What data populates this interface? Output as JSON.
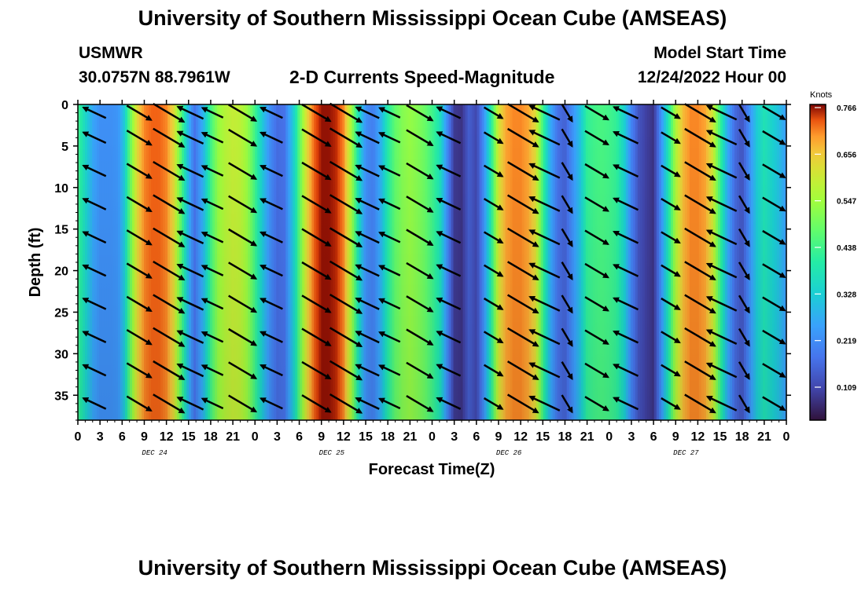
{
  "page": {
    "title_top": "University of Southern Mississippi Ocean Cube (AMSEAS)",
    "title_bottom": "University of Southern Mississippi Ocean Cube (AMSEAS)",
    "station_id": "USMWR",
    "station_coords": "30.0757N  88.7961W",
    "plot_title": "2-D Currents Speed-Magnitude",
    "model_start_label": "Model Start Time",
    "model_start_value": "12/24/2022 Hour 00"
  },
  "chart_data": {
    "type": "heatmap",
    "title": "2-D Currents Speed-Magnitude",
    "xlabel": "Forecast Time(Z)",
    "ylabel": "Depth (ft)",
    "x_range_hours": [
      0,
      96
    ],
    "y_range_ft": [
      0,
      38
    ],
    "x_tick_labels": [
      "0",
      "3",
      "6",
      "9",
      "12",
      "15",
      "18",
      "21",
      "0",
      "3",
      "6",
      "9",
      "12",
      "15",
      "18",
      "21",
      "0",
      "3",
      "6",
      "9",
      "12",
      "15",
      "18",
      "21",
      "0",
      "3",
      "6",
      "9",
      "12",
      "15",
      "18",
      "21",
      "0"
    ],
    "y_ticks": [
      0,
      5,
      10,
      15,
      20,
      25,
      30,
      35
    ],
    "date_labels": [
      {
        "label": "DEC 24",
        "hour": 12
      },
      {
        "label": "DEC 25",
        "hour": 36
      },
      {
        "label": "DEC 26",
        "hour": 60
      },
      {
        "label": "DEC 27",
        "hour": 84
      }
    ],
    "colorbar": {
      "units": "Knots",
      "ticks": [
        "0.766",
        "0.656",
        "0.547",
        "0.438",
        "0.328",
        "0.219",
        "0.109"
      ],
      "min": 0.0,
      "max": 0.766
    },
    "arrow_hours": [
      1,
      7,
      11,
      14,
      17,
      21,
      25,
      31,
      35,
      38,
      41,
      45,
      49,
      55,
      59,
      62,
      65,
      69,
      73,
      79,
      83,
      86,
      89,
      93
    ],
    "arrow_depths_ft": [
      1,
      4,
      8,
      12,
      16,
      20,
      24,
      28,
      32,
      36
    ],
    "speed_profile_knots": {
      "hours": [
        0,
        1,
        2,
        3,
        4.5,
        5.5,
        6.3,
        7,
        8,
        9,
        10,
        11,
        12,
        13,
        14,
        15,
        15.8,
        17,
        18,
        19,
        20,
        21,
        22,
        23,
        24,
        25,
        26,
        27,
        28,
        29,
        29.5,
        30,
        31,
        32,
        33,
        34,
        35,
        36,
        37,
        38,
        39,
        40,
        41,
        42,
        43,
        44,
        45,
        46,
        47,
        48,
        49,
        50,
        51,
        52,
        53,
        54,
        55,
        56,
        57,
        58,
        59,
        60,
        61,
        62,
        63,
        64,
        65,
        66,
        67,
        68,
        69,
        70,
        71,
        72,
        73,
        74,
        75,
        76,
        77,
        78,
        79,
        80,
        81,
        82,
        83,
        84,
        85,
        86,
        87,
        88,
        89,
        90,
        91,
        92,
        93,
        94,
        95,
        96
      ],
      "values": [
        0.42,
        0.33,
        0.24,
        0.2,
        0.2,
        0.21,
        0.3,
        0.45,
        0.62,
        0.7,
        0.72,
        0.72,
        0.7,
        0.62,
        0.45,
        0.26,
        0.15,
        0.26,
        0.42,
        0.52,
        0.56,
        0.58,
        0.57,
        0.52,
        0.42,
        0.3,
        0.2,
        0.14,
        0.15,
        0.28,
        0.35,
        0.45,
        0.62,
        0.72,
        0.76,
        0.76,
        0.75,
        0.7,
        0.55,
        0.35,
        0.2,
        0.17,
        0.25,
        0.38,
        0.46,
        0.5,
        0.52,
        0.5,
        0.47,
        0.42,
        0.36,
        0.2,
        0.06,
        0.05,
        0.12,
        0.08,
        0.2,
        0.38,
        0.6,
        0.68,
        0.7,
        0.7,
        0.68,
        0.62,
        0.42,
        0.25,
        0.15,
        0.12,
        0.2,
        0.28,
        0.4,
        0.42,
        0.43,
        0.42,
        0.4,
        0.32,
        0.18,
        0.1,
        0.07,
        0.05,
        0.2,
        0.36,
        0.55,
        0.66,
        0.7,
        0.7,
        0.68,
        0.6,
        0.42,
        0.25,
        0.14,
        0.1,
        0.2,
        0.3,
        0.36,
        0.32,
        0.28,
        0.22
      ]
    }
  }
}
